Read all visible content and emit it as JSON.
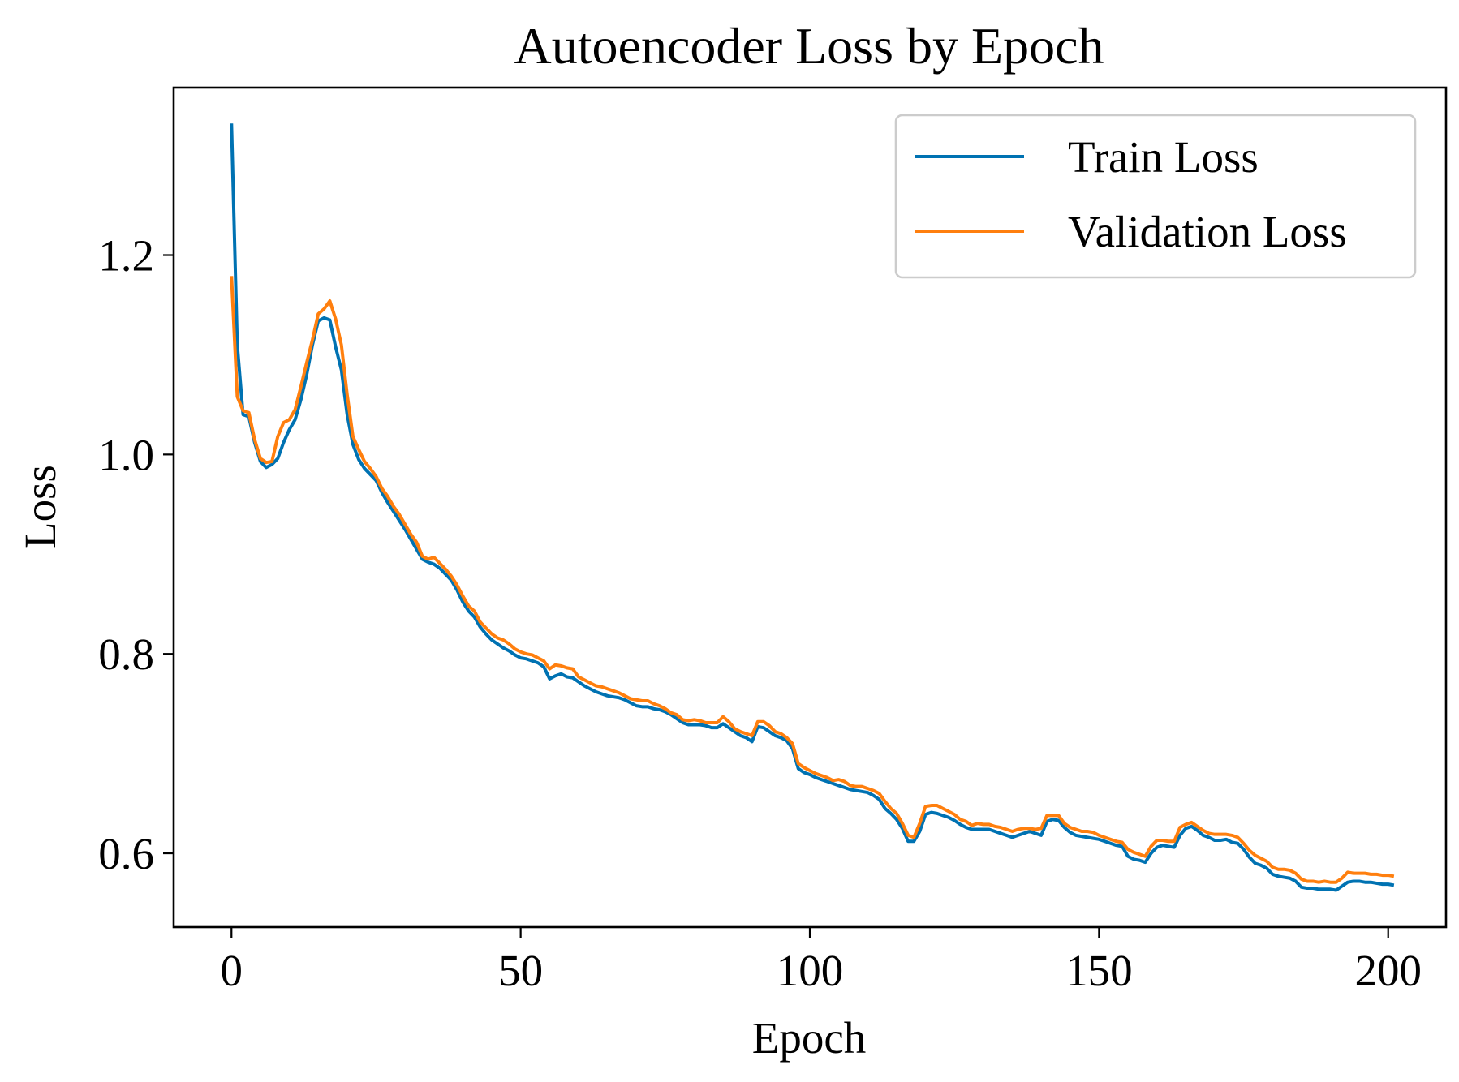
{
  "chart_data": {
    "type": "line",
    "title": "Autoencoder Loss by Epoch",
    "xlabel": "Epoch",
    "ylabel": "Loss",
    "xlim": [
      -10,
      210
    ],
    "ylim": [
      0.526,
      1.368
    ],
    "xticks": [
      0,
      50,
      100,
      150,
      200
    ],
    "xtick_labels": [
      "0",
      "50",
      "100",
      "150",
      "200"
    ],
    "yticks": [
      0.6,
      0.8,
      1.0,
      1.2
    ],
    "ytick_labels": [
      "0.6",
      "0.8",
      "1.0",
      "1.2"
    ],
    "grid": false,
    "legend_position": "upper right",
    "x_start": 0,
    "series": [
      {
        "name": "Train Loss",
        "color": "#0072B2",
        "values": [
          1.332,
          1.11,
          1.04,
          1.038,
          1.012,
          0.993,
          0.987,
          0.99,
          0.996,
          1.012,
          1.025,
          1.035,
          1.055,
          1.08,
          1.11,
          1.134,
          1.137,
          1.135,
          1.108,
          1.085,
          1.04,
          1.01,
          0.995,
          0.986,
          0.98,
          0.974,
          0.962,
          0.952,
          0.943,
          0.934,
          0.925,
          0.915,
          0.905,
          0.895,
          0.892,
          0.89,
          0.886,
          0.88,
          0.874,
          0.864,
          0.852,
          0.843,
          0.837,
          0.827,
          0.82,
          0.814,
          0.81,
          0.806,
          0.803,
          0.799,
          0.796,
          0.795,
          0.793,
          0.791,
          0.787,
          0.775,
          0.778,
          0.78,
          0.777,
          0.776,
          0.772,
          0.768,
          0.765,
          0.762,
          0.76,
          0.758,
          0.757,
          0.756,
          0.754,
          0.751,
          0.748,
          0.747,
          0.747,
          0.745,
          0.744,
          0.742,
          0.739,
          0.735,
          0.731,
          0.729,
          0.729,
          0.729,
          0.728,
          0.726,
          0.726,
          0.73,
          0.726,
          0.722,
          0.718,
          0.716,
          0.712,
          0.727,
          0.726,
          0.722,
          0.718,
          0.716,
          0.713,
          0.705,
          0.685,
          0.681,
          0.679,
          0.676,
          0.674,
          0.672,
          0.67,
          0.668,
          0.666,
          0.664,
          0.663,
          0.662,
          0.661,
          0.658,
          0.654,
          0.645,
          0.64,
          0.634,
          0.625,
          0.612,
          0.612,
          0.622,
          0.639,
          0.641,
          0.64,
          0.638,
          0.636,
          0.633,
          0.629,
          0.626,
          0.624,
          0.624,
          0.624,
          0.624,
          0.622,
          0.62,
          0.618,
          0.616,
          0.618,
          0.62,
          0.622,
          0.62,
          0.618,
          0.632,
          0.634,
          0.633,
          0.626,
          0.621,
          0.618,
          0.617,
          0.616,
          0.615,
          0.614,
          0.612,
          0.61,
          0.608,
          0.607,
          0.597,
          0.594,
          0.593,
          0.591,
          0.6,
          0.606,
          0.608,
          0.607,
          0.606,
          0.618,
          0.625,
          0.627,
          0.623,
          0.618,
          0.616,
          0.613,
          0.613,
          0.614,
          0.611,
          0.61,
          0.604,
          0.596,
          0.59,
          0.588,
          0.585,
          0.579,
          0.577,
          0.576,
          0.575,
          0.572,
          0.566,
          0.565,
          0.565,
          0.564,
          0.564,
          0.564,
          0.563,
          0.567,
          0.571,
          0.572,
          0.572,
          0.571,
          0.571,
          0.57,
          0.569,
          0.569,
          0.568
        ]
      },
      {
        "name": "Validation Loss",
        "color": "#FF7F0E",
        "values": [
          1.179,
          1.058,
          1.044,
          1.042,
          1.015,
          0.996,
          0.992,
          0.993,
          1.018,
          1.032,
          1.035,
          1.045,
          1.068,
          1.092,
          1.115,
          1.141,
          1.146,
          1.154,
          1.136,
          1.11,
          1.06,
          1.018,
          1.005,
          0.993,
          0.986,
          0.978,
          0.966,
          0.958,
          0.948,
          0.94,
          0.93,
          0.92,
          0.912,
          0.898,
          0.895,
          0.897,
          0.891,
          0.885,
          0.878,
          0.869,
          0.858,
          0.848,
          0.843,
          0.832,
          0.826,
          0.82,
          0.816,
          0.814,
          0.81,
          0.805,
          0.802,
          0.8,
          0.799,
          0.796,
          0.793,
          0.785,
          0.789,
          0.788,
          0.786,
          0.785,
          0.777,
          0.774,
          0.771,
          0.768,
          0.767,
          0.765,
          0.763,
          0.761,
          0.758,
          0.755,
          0.754,
          0.753,
          0.753,
          0.75,
          0.748,
          0.745,
          0.741,
          0.739,
          0.734,
          0.733,
          0.734,
          0.733,
          0.731,
          0.731,
          0.731,
          0.737,
          0.732,
          0.725,
          0.722,
          0.72,
          0.718,
          0.732,
          0.732,
          0.728,
          0.722,
          0.72,
          0.716,
          0.71,
          0.69,
          0.686,
          0.683,
          0.68,
          0.678,
          0.676,
          0.673,
          0.674,
          0.672,
          0.668,
          0.667,
          0.667,
          0.665,
          0.663,
          0.66,
          0.652,
          0.645,
          0.64,
          0.63,
          0.618,
          0.616,
          0.63,
          0.647,
          0.648,
          0.648,
          0.645,
          0.642,
          0.639,
          0.634,
          0.632,
          0.628,
          0.63,
          0.629,
          0.629,
          0.627,
          0.626,
          0.624,
          0.622,
          0.624,
          0.625,
          0.625,
          0.624,
          0.625,
          0.638,
          0.638,
          0.638,
          0.63,
          0.626,
          0.624,
          0.622,
          0.622,
          0.621,
          0.618,
          0.616,
          0.614,
          0.612,
          0.611,
          0.604,
          0.601,
          0.599,
          0.597,
          0.607,
          0.613,
          0.613,
          0.612,
          0.612,
          0.626,
          0.629,
          0.631,
          0.627,
          0.623,
          0.62,
          0.619,
          0.619,
          0.619,
          0.618,
          0.616,
          0.61,
          0.603,
          0.598,
          0.595,
          0.592,
          0.586,
          0.584,
          0.584,
          0.583,
          0.58,
          0.574,
          0.572,
          0.572,
          0.571,
          0.572,
          0.571,
          0.571,
          0.575,
          0.581,
          0.58,
          0.58,
          0.58,
          0.579,
          0.579,
          0.578,
          0.578,
          0.577
        ]
      }
    ]
  }
}
